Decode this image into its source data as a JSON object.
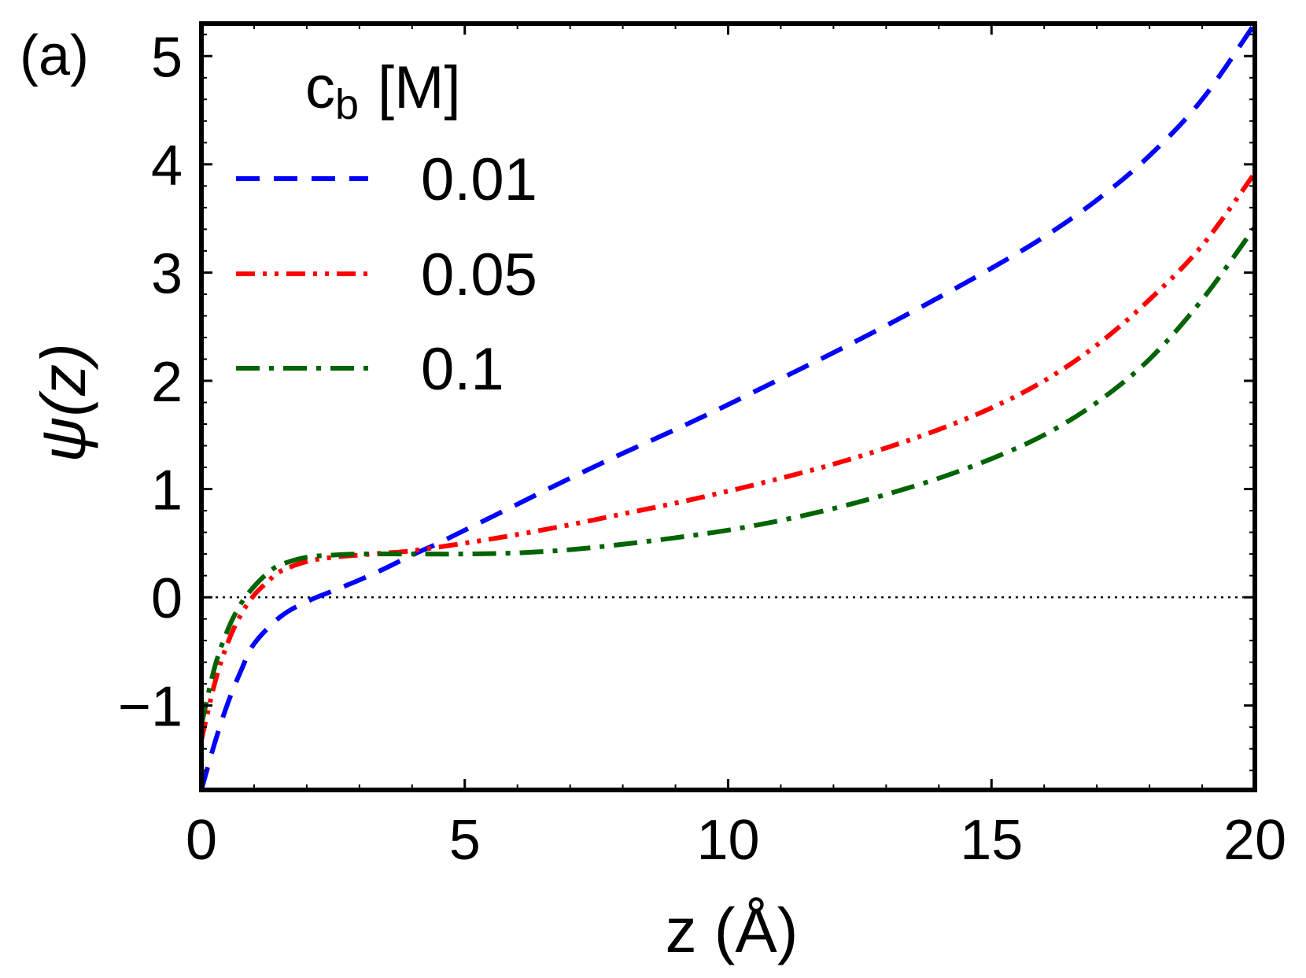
{
  "chart_data": {
    "type": "line",
    "panel_label": "(a)",
    "xlabel": "z (Å)",
    "ylabel": "ψ(z)",
    "xlim": [
      0,
      20
    ],
    "ylim": [
      -1.78,
      5.3
    ],
    "xticks": [
      0,
      5,
      10,
      15,
      20
    ],
    "xtick_labels": [
      "0",
      "5",
      "10",
      "15",
      "20"
    ],
    "yticks": [
      -1,
      0,
      1,
      2,
      3,
      4,
      5
    ],
    "ytick_labels": [
      "−1",
      "0",
      "1",
      "2",
      "3",
      "4",
      "5"
    ],
    "zero_reference_line": 0,
    "legend": {
      "title_main": "c",
      "title_sub": "b",
      "title_unit": "[M]",
      "position": "top-left"
    },
    "series": [
      {
        "name": "0.01",
        "color": "#0000ff",
        "dash": "dashed",
        "x": [
          0,
          0.25,
          0.5,
          0.75,
          1,
          1.5,
          2,
          2.5,
          3,
          3.5,
          4,
          4.5,
          5,
          6,
          7,
          8,
          9,
          10,
          11,
          12,
          13,
          14,
          15,
          16,
          17,
          18,
          19,
          20
        ],
        "y": [
          -1.78,
          -1.35,
          -0.98,
          -0.68,
          -0.43,
          -0.18,
          -0.04,
          0.06,
          0.16,
          0.27,
          0.39,
          0.5,
          0.62,
          0.86,
          1.1,
          1.33,
          1.55,
          1.78,
          2.02,
          2.26,
          2.51,
          2.77,
          3.04,
          3.33,
          3.67,
          4.08,
          4.6,
          5.3
        ]
      },
      {
        "name": "0.05",
        "color": "#ff0000",
        "dash": "dash-dot-dot",
        "x": [
          0,
          0.25,
          0.5,
          0.75,
          1,
          1.25,
          1.5,
          2,
          2.5,
          3,
          3.5,
          4,
          5,
          6,
          7,
          8,
          9,
          10,
          11,
          12,
          13,
          14,
          15,
          16,
          17,
          18,
          19,
          20
        ],
        "y": [
          -1.32,
          -0.8,
          -0.42,
          -0.16,
          0.02,
          0.14,
          0.24,
          0.33,
          0.37,
          0.39,
          0.41,
          0.43,
          0.5,
          0.58,
          0.67,
          0.77,
          0.87,
          0.98,
          1.1,
          1.23,
          1.38,
          1.55,
          1.75,
          2.0,
          2.33,
          2.75,
          3.25,
          3.92
        ]
      },
      {
        "name": "0.1",
        "color": "#006400",
        "dash": "dash-dot",
        "x": [
          0,
          0.25,
          0.5,
          0.75,
          1,
          1.25,
          1.5,
          2,
          2.5,
          3,
          4,
          5,
          6,
          7,
          8,
          9,
          10,
          11,
          12,
          13,
          14,
          15,
          16,
          17,
          18,
          19,
          20
        ],
        "y": [
          -1.18,
          -0.65,
          -0.3,
          -0.06,
          0.1,
          0.22,
          0.3,
          0.37,
          0.39,
          0.4,
          0.4,
          0.4,
          0.41,
          0.44,
          0.49,
          0.55,
          0.62,
          0.71,
          0.82,
          0.95,
          1.1,
          1.28,
          1.5,
          1.8,
          2.2,
          2.75,
          3.42
        ]
      }
    ]
  }
}
